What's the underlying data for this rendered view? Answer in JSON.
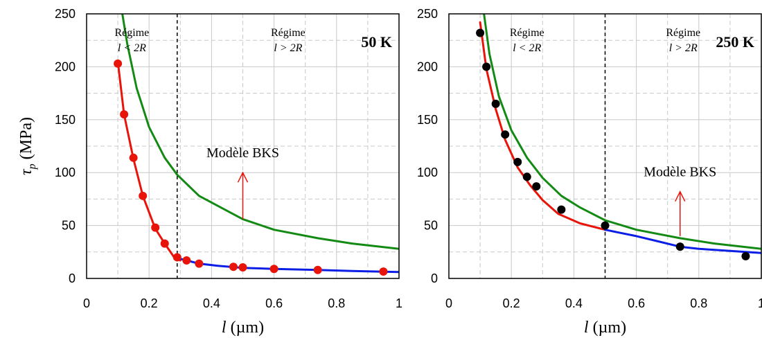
{
  "chart_data": [
    {
      "type": "line",
      "title": "",
      "temperature_label": "50 K",
      "xlabel_symbol": "l",
      "xlabel_unit": " (µm)",
      "ylabel_symbol": "τ",
      "ylabel_sub": "p",
      "ylabel_unit": " (MPa)",
      "xlim": [
        0,
        1
      ],
      "ylim": [
        0,
        250
      ],
      "xticks": [
        "0",
        "0.2",
        "0.4",
        "0.6",
        "0.8",
        "1"
      ],
      "yticks": [
        "0",
        "50",
        "100",
        "150",
        "200",
        "250"
      ],
      "grid": true,
      "regime_boundary_x": 0.29,
      "regime_left": {
        "line1": "Régime",
        "line2": "l < 2R"
      },
      "regime_right": {
        "line1": "Régime",
        "line2": "l > 2R"
      },
      "annotation": "Modèle BKS",
      "annotation_arrow": {
        "x": 0.5,
        "from_y": 56,
        "to_y": 100
      },
      "series": [
        {
          "color": "#e8140a",
          "style": "line",
          "x": [
            0.1,
            0.12,
            0.15,
            0.18,
            0.22,
            0.25,
            0.28,
            0.3
          ],
          "y": [
            205,
            155,
            113,
            78,
            47,
            33,
            20,
            17
          ]
        },
        {
          "color": "#0a1ee6",
          "style": "line",
          "x": [
            0.28,
            0.32,
            0.36,
            0.42,
            0.5,
            0.6,
            0.74,
            0.85,
            1.0
          ],
          "y": [
            20,
            17,
            14,
            12,
            10,
            9,
            8,
            7,
            6
          ]
        },
        {
          "color": "#138a13",
          "style": "line",
          "x": [
            0.11,
            0.13,
            0.16,
            0.2,
            0.25,
            0.29,
            0.36,
            0.5,
            0.6,
            0.74,
            0.85,
            1.0
          ],
          "y": [
            258,
            222,
            180,
            143,
            114,
            98,
            78,
            56,
            46,
            38,
            33,
            28
          ]
        },
        {
          "color": "#e8140a",
          "style": "markers",
          "x": [
            0.1,
            0.12,
            0.15,
            0.18,
            0.22,
            0.25,
            0.29,
            0.32,
            0.36,
            0.47,
            0.5,
            0.6,
            0.74,
            0.95
          ],
          "y": [
            203,
            155,
            114,
            78,
            48,
            33,
            20,
            17,
            14,
            11,
            10.5,
            9,
            8,
            6.5
          ]
        }
      ]
    },
    {
      "type": "line",
      "title": "",
      "temperature_label": "250 K",
      "xlabel_symbol": "l",
      "xlabel_unit": " (µm)",
      "xlim": [
        0,
        1
      ],
      "ylim": [
        0,
        250
      ],
      "xticks": [
        "0",
        "0.2",
        "0.4",
        "0.6",
        "0.8",
        "1"
      ],
      "yticks": [
        "0",
        "50",
        "100",
        "150",
        "200",
        "250"
      ],
      "grid": true,
      "regime_boundary_x": 0.5,
      "regime_left": {
        "line1": "Régime",
        "line2": "l < 2R"
      },
      "regime_right": {
        "line1": "Régime",
        "line2": "l > 2R"
      },
      "annotation": "Modèle BKS",
      "annotation_arrow": {
        "x": 0.74,
        "from_y": 40,
        "to_y": 82
      },
      "series": [
        {
          "color": "#e8140a",
          "style": "line",
          "x": [
            0.1,
            0.12,
            0.15,
            0.18,
            0.22,
            0.26,
            0.3,
            0.35,
            0.42,
            0.5
          ],
          "y": [
            242,
            198,
            160,
            131,
            105,
            88,
            74,
            61,
            52,
            46
          ]
        },
        {
          "color": "#0a1ee6",
          "style": "line",
          "x": [
            0.5,
            0.55,
            0.6,
            0.67,
            0.74,
            0.8,
            0.9,
            1.0
          ],
          "y": [
            46,
            43,
            40,
            35,
            30,
            28,
            26,
            24
          ]
        },
        {
          "color": "#138a13",
          "style": "line",
          "x": [
            0.11,
            0.13,
            0.16,
            0.2,
            0.25,
            0.3,
            0.36,
            0.42,
            0.5,
            0.6,
            0.74,
            0.85,
            1.0
          ],
          "y": [
            255,
            212,
            172,
            140,
            114,
            95,
            78,
            67,
            55,
            46,
            38,
            33,
            28
          ]
        },
        {
          "color": "#000000",
          "style": "markers",
          "x": [
            0.1,
            0.12,
            0.15,
            0.18,
            0.22,
            0.25,
            0.28,
            0.36,
            0.5,
            0.74,
            0.95
          ],
          "y": [
            232,
            200,
            165,
            136,
            110,
            96,
            87,
            65,
            50,
            30,
            21
          ]
        }
      ]
    }
  ]
}
